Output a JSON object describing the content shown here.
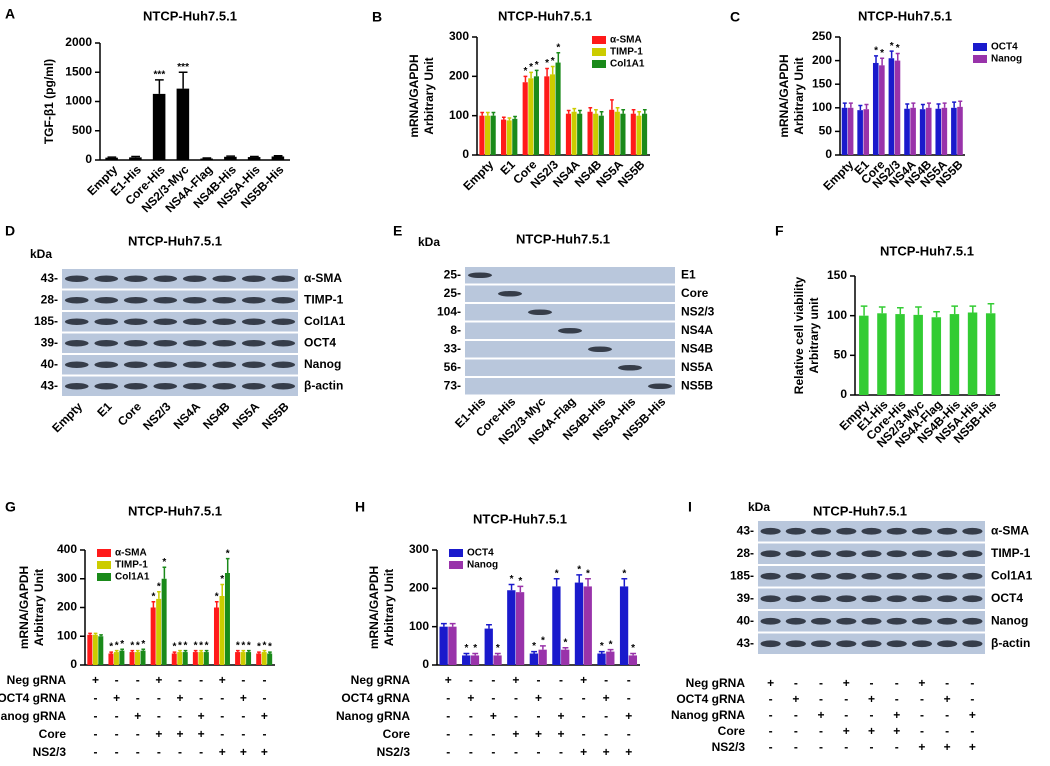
{
  "chart_data": [
    {
      "panel": "A",
      "type": "bar",
      "title": "NTCP-Huh7.5.1",
      "ylabel": [
        "TGF-β1 (pg/ml)"
      ],
      "categories": [
        "Empty",
        "E1-His",
        "Core-His",
        "NS2/3-Myc",
        "NS4A-Flag",
        "NS4B-His",
        "NS5A-His",
        "NS5B-His"
      ],
      "series": [
        {
          "color": "#000000",
          "values": [
            40,
            45,
            1130,
            1220,
            25,
            55,
            50,
            60
          ],
          "errors": [
            10,
            15,
            240,
            280,
            10,
            12,
            10,
            12
          ],
          "significance": [
            null,
            null,
            "***",
            "***",
            null,
            null,
            null,
            null
          ]
        }
      ],
      "ylim": [
        0,
        2000
      ],
      "yticks": [
        0,
        500,
        1000,
        1500,
        2000
      ]
    },
    {
      "panel": "B",
      "type": "bar",
      "title": "NTCP-Huh7.5.1",
      "ylabel": [
        "mRNA/GAPDH",
        "Arbitrary Unit"
      ],
      "categories": [
        "Empty",
        "E1",
        "Core",
        "NS2/3",
        "NS4A",
        "NS4B",
        "NS5A",
        "NS5B"
      ],
      "series": [
        {
          "name": "α-SMA",
          "color": "#ff1a1a",
          "values": [
            100,
            90,
            185,
            200,
            105,
            110,
            115,
            105
          ],
          "errors": [
            8,
            6,
            15,
            20,
            8,
            10,
            25,
            10
          ],
          "significance": [
            null,
            null,
            "*",
            "*",
            null,
            null,
            null,
            null
          ]
        },
        {
          "name": "TIMP-1",
          "color": "#cccc00",
          "values": [
            100,
            88,
            195,
            205,
            110,
            105,
            110,
            100
          ],
          "errors": [
            8,
            6,
            15,
            20,
            8,
            10,
            10,
            10
          ],
          "significance": [
            null,
            null,
            "*",
            "*",
            null,
            null,
            null,
            null
          ]
        },
        {
          "name": "Col1A1",
          "color": "#1a8a1a",
          "values": [
            100,
            92,
            200,
            235,
            105,
            100,
            105,
            105
          ],
          "errors": [
            8,
            6,
            15,
            25,
            8,
            10,
            10,
            10
          ],
          "significance": [
            null,
            null,
            "*",
            "*",
            null,
            null,
            null,
            null
          ]
        }
      ],
      "ylim": [
        0,
        300
      ],
      "yticks": [
        0,
        100,
        200,
        300
      ],
      "legend": "upper right"
    },
    {
      "panel": "C",
      "type": "bar",
      "title": "NTCP-Huh7.5.1",
      "ylabel": [
        "mRNA/GAPDH",
        "Arbitrary Unit"
      ],
      "categories": [
        "Empty",
        "E1",
        "Core",
        "NS2/3",
        "NS4A",
        "NS4B",
        "NS5A",
        "NS5B"
      ],
      "series": [
        {
          "name": "OCT4",
          "color": "#1a1acc",
          "values": [
            100,
            95,
            195,
            205,
            98,
            97,
            98,
            100
          ],
          "errors": [
            10,
            10,
            15,
            15,
            10,
            10,
            10,
            12
          ],
          "significance": [
            null,
            null,
            "*",
            "*",
            null,
            null,
            null,
            null
          ]
        },
        {
          "name": "Nanog",
          "color": "#9933aa",
          "values": [
            100,
            97,
            190,
            200,
            100,
            100,
            100,
            102
          ],
          "errors": [
            10,
            10,
            15,
            15,
            10,
            10,
            10,
            12
          ],
          "significance": [
            null,
            null,
            "*",
            "*",
            null,
            null,
            null,
            null
          ]
        }
      ],
      "ylim": [
        0,
        250
      ],
      "yticks": [
        0,
        50,
        100,
        150,
        200,
        250
      ],
      "legend": "outside right"
    },
    {
      "panel": "F",
      "type": "bar",
      "title": "NTCP-Huh7.5.1",
      "ylabel": [
        "Relative cell viability",
        "Arbitrary unit"
      ],
      "categories": [
        "Empty",
        "E1-His",
        "Core-His",
        "NS2/3-Myc",
        "NS4A-Flag",
        "NS4B-His",
        "NS5A-His",
        "NS5B-His"
      ],
      "series": [
        {
          "color": "#33cc33",
          "values": [
            100,
            103,
            102,
            101,
            98,
            102,
            104,
            103
          ],
          "errors": [
            12,
            8,
            8,
            10,
            7,
            10,
            8,
            12
          ]
        }
      ],
      "ylim": [
        0,
        150
      ],
      "yticks": [
        0,
        50,
        100,
        150
      ]
    },
    {
      "panel": "G",
      "type": "bar",
      "title": "NTCP-Huh7.5.1",
      "ylabel": [
        "mRNA/GAPDH",
        "Arbitrary Unit"
      ],
      "series": [
        {
          "name": "α-SMA",
          "color": "#ff1a1a",
          "values": [
            105,
            40,
            45,
            200,
            40,
            45,
            200,
            45,
            40
          ],
          "errors": [
            5,
            5,
            5,
            20,
            5,
            5,
            20,
            5,
            5
          ],
          "significance": [
            null,
            "*",
            "*",
            "*",
            "*",
            "*",
            "*",
            "*",
            "*"
          ]
        },
        {
          "name": "TIMP-1",
          "color": "#cccc00",
          "values": [
            105,
            45,
            45,
            230,
            45,
            45,
            240,
            45,
            45
          ],
          "errors": [
            5,
            5,
            5,
            25,
            5,
            5,
            40,
            5,
            5
          ],
          "significance": [
            null,
            "*",
            "*",
            "*",
            "*",
            "*",
            "*",
            "*",
            "*"
          ]
        },
        {
          "name": "Col1A1",
          "color": "#1a8a1a",
          "values": [
            100,
            50,
            50,
            300,
            45,
            45,
            320,
            45,
            40
          ],
          "errors": [
            5,
            5,
            5,
            40,
            5,
            5,
            50,
            5,
            5
          ],
          "significance": [
            null,
            "*",
            "*",
            "*",
            "*",
            "*",
            "*",
            "*",
            "*"
          ]
        }
      ],
      "ylim": [
        0,
        400
      ],
      "yticks": [
        0,
        100,
        200,
        300,
        400
      ],
      "legend": "upper left",
      "conditions": [
        {
          "label": "Neg gRNA",
          "marks": [
            "+",
            "-",
            "-",
            "+",
            "-",
            "-",
            "+",
            "-",
            "-"
          ]
        },
        {
          "label": "OCT4 gRNA",
          "marks": [
            "-",
            "+",
            "-",
            "-",
            "+",
            "-",
            "-",
            "+",
            "-"
          ]
        },
        {
          "label": "Nanog gRNA",
          "marks": [
            "-",
            "-",
            "+",
            "-",
            "-",
            "+",
            "-",
            "-",
            "+"
          ]
        },
        {
          "label": "Core",
          "marks": [
            "-",
            "-",
            "-",
            "+",
            "+",
            "+",
            "-",
            "-",
            "-"
          ]
        },
        {
          "label": "NS2/3",
          "marks": [
            "-",
            "-",
            "-",
            "-",
            "-",
            "-",
            "+",
            "+",
            "+"
          ]
        }
      ]
    },
    {
      "panel": "H",
      "type": "bar",
      "title": "NTCP-Huh7.5.1",
      "ylabel": [
        "mRNA/GAPDH",
        "Arbitrary Unit"
      ],
      "series": [
        {
          "name": "OCT4",
          "color": "#1a1acc",
          "values": [
            100,
            25,
            95,
            195,
            30,
            205,
            215,
            30,
            205
          ],
          "errors": [
            8,
            5,
            10,
            15,
            5,
            20,
            20,
            5,
            20
          ],
          "significance": [
            null,
            "*",
            null,
            "*",
            "*",
            "*",
            "*",
            "*",
            "*"
          ]
        },
        {
          "name": "Nanog",
          "color": "#9933aa",
          "values": [
            100,
            25,
            25,
            190,
            40,
            40,
            205,
            35,
            25
          ],
          "errors": [
            8,
            5,
            5,
            15,
            10,
            5,
            20,
            5,
            5
          ],
          "significance": [
            null,
            "*",
            "*",
            "*",
            "*",
            "*",
            "*",
            "*",
            "*"
          ]
        }
      ],
      "ylim": [
        0,
        300
      ],
      "yticks": [
        0,
        100,
        200,
        300
      ],
      "legend": "upper left",
      "conditions": [
        {
          "label": "Neg gRNA",
          "marks": [
            "+",
            "-",
            "-",
            "+",
            "-",
            "-",
            "+",
            "-",
            "-"
          ]
        },
        {
          "label": "OCT4 gRNA",
          "marks": [
            "-",
            "+",
            "-",
            "-",
            "+",
            "-",
            "-",
            "+",
            "-"
          ]
        },
        {
          "label": "Nanog gRNA",
          "marks": [
            "-",
            "-",
            "+",
            "-",
            "-",
            "+",
            "-",
            "-",
            "+"
          ]
        },
        {
          "label": "Core",
          "marks": [
            "-",
            "-",
            "-",
            "+",
            "+",
            "+",
            "-",
            "-",
            "-"
          ]
        },
        {
          "label": "NS2/3",
          "marks": [
            "-",
            "-",
            "-",
            "-",
            "-",
            "-",
            "+",
            "+",
            "+"
          ]
        }
      ]
    }
  ],
  "blots": [
    {
      "panel": "D",
      "title": "NTCP-Huh7.5.1",
      "unit": "kDa",
      "rows": [
        {
          "kda": "43-",
          "label": "α-SMA"
        },
        {
          "kda": "28-",
          "label": "TIMP-1"
        },
        {
          "kda": "185-",
          "label": "Col1A1"
        },
        {
          "kda": "39-",
          "label": "OCT4"
        },
        {
          "kda": "40-",
          "label": "Nanog"
        },
        {
          "kda": "43-",
          "label": "β-actin"
        }
      ],
      "lanes": [
        "Empty",
        "E1",
        "Core",
        "NS2/3",
        "NS4A",
        "NS4B",
        "NS5A",
        "NS5B"
      ]
    },
    {
      "panel": "E",
      "title": "NTCP-Huh7.5.1",
      "unit": "kDa",
      "rows": [
        {
          "kda": "25-",
          "label": "E1"
        },
        {
          "kda": "25-",
          "label": "Core"
        },
        {
          "kda": "104-",
          "label": "NS2/3"
        },
        {
          "kda": "8-",
          "label": "NS4A"
        },
        {
          "kda": "33-",
          "label": "NS4B"
        },
        {
          "kda": "56-",
          "label": "NS5A"
        },
        {
          "kda": "73-",
          "label": "NS5B"
        }
      ],
      "lanes": [
        "E1-His",
        "Core-His",
        "NS2/3-Myc",
        "NS4A-Flag",
        "NS4B-His",
        "NS5A-His",
        "NS5B-His"
      ]
    },
    {
      "panel": "I",
      "title": "NTCP-Huh7.5.1",
      "unit": "kDa",
      "rows": [
        {
          "kda": "43-",
          "label": "α-SMA"
        },
        {
          "kda": "28-",
          "label": "TIMP-1"
        },
        {
          "kda": "185-",
          "label": "Col1A1"
        },
        {
          "kda": "39-",
          "label": "OCT4"
        },
        {
          "kda": "40-",
          "label": "Nanog"
        },
        {
          "kda": "43-",
          "label": "β-actin"
        }
      ],
      "conditions": [
        {
          "label": "Neg gRNA",
          "marks": [
            "+",
            "-",
            "-",
            "+",
            "-",
            "-",
            "+",
            "-",
            "-"
          ]
        },
        {
          "label": "OCT4 gRNA",
          "marks": [
            "-",
            "+",
            "-",
            "-",
            "+",
            "-",
            "-",
            "+",
            "-"
          ]
        },
        {
          "label": "Nanog gRNA",
          "marks": [
            "-",
            "-",
            "+",
            "-",
            "-",
            "+",
            "-",
            "-",
            "+"
          ]
        },
        {
          "label": "Core",
          "marks": [
            "-",
            "-",
            "-",
            "+",
            "+",
            "+",
            "-",
            "-",
            "-"
          ]
        },
        {
          "label": "NS2/3",
          "marks": [
            "-",
            "-",
            "-",
            "-",
            "-",
            "-",
            "+",
            "+",
            "+"
          ]
        }
      ]
    }
  ]
}
